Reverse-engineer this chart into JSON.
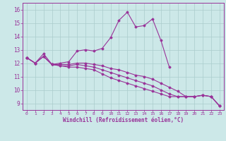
{
  "xlabel": "Windchill (Refroidissement éolien,°C)",
  "background_color": "#cce8e8",
  "line_color": "#993399",
  "grid_color": "#aacccc",
  "xlim": [
    -0.5,
    23.5
  ],
  "ylim": [
    8.5,
    16.5
  ],
  "xticks": [
    0,
    1,
    2,
    3,
    4,
    5,
    6,
    7,
    8,
    9,
    10,
    11,
    12,
    13,
    14,
    15,
    16,
    17,
    18,
    19,
    20,
    21,
    22,
    23
  ],
  "yticks": [
    9,
    10,
    11,
    12,
    13,
    14,
    15,
    16
  ],
  "series": [
    {
      "x": [
        0,
        1,
        2,
        3,
        4,
        5,
        6,
        7,
        8,
        9,
        10,
        11,
        12,
        13,
        14,
        15,
        16,
        17
      ],
      "y": [
        12.4,
        12.0,
        12.7,
        11.9,
        12.0,
        12.1,
        12.9,
        13.0,
        12.9,
        13.1,
        13.9,
        15.2,
        15.8,
        14.7,
        14.8,
        15.3,
        13.7,
        11.7
      ]
    },
    {
      "x": [
        0,
        1,
        2,
        3,
        4,
        5,
        6,
        7,
        8,
        9,
        10,
        11,
        12,
        13,
        14,
        15,
        16,
        17,
        18,
        19,
        20,
        21,
        22,
        23
      ],
      "y": [
        12.4,
        12.0,
        12.5,
        11.9,
        11.9,
        11.9,
        12.0,
        12.0,
        11.9,
        11.8,
        11.6,
        11.5,
        11.3,
        11.1,
        11.0,
        10.8,
        10.5,
        10.2,
        9.9,
        9.5,
        9.5,
        9.6,
        9.5,
        8.8
      ]
    },
    {
      "x": [
        0,
        1,
        2,
        3,
        4,
        5,
        6,
        7,
        8,
        9,
        10,
        11,
        12,
        13,
        14,
        15,
        16,
        17,
        18,
        19,
        20,
        21,
        22,
        23
      ],
      "y": [
        12.4,
        12.0,
        12.5,
        11.9,
        11.8,
        11.8,
        11.9,
        11.8,
        11.7,
        11.5,
        11.3,
        11.1,
        10.9,
        10.7,
        10.5,
        10.3,
        10.0,
        9.7,
        9.5,
        9.5,
        9.5,
        9.6,
        9.5,
        8.8
      ]
    },
    {
      "x": [
        0,
        1,
        2,
        3,
        4,
        5,
        6,
        7,
        8,
        9,
        10,
        11,
        12,
        13,
        14,
        15,
        16,
        17,
        18,
        19,
        20,
        21,
        22,
        23
      ],
      "y": [
        12.4,
        12.0,
        12.5,
        11.9,
        11.8,
        11.7,
        11.7,
        11.6,
        11.5,
        11.2,
        10.9,
        10.7,
        10.5,
        10.3,
        10.1,
        9.9,
        9.7,
        9.5,
        9.5,
        9.5,
        9.5,
        9.6,
        9.5,
        8.8
      ]
    }
  ]
}
